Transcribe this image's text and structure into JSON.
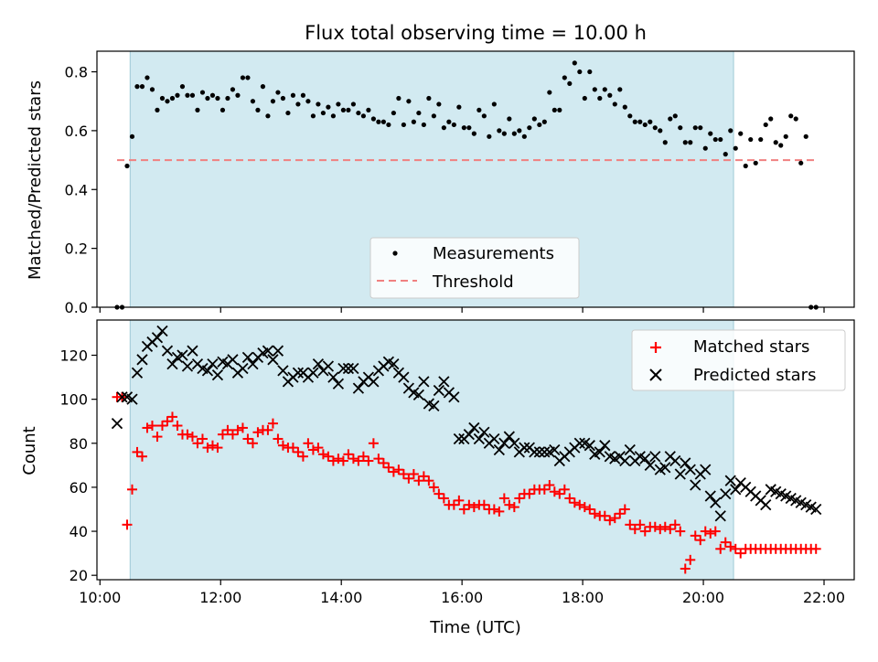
{
  "figure": {
    "title": "Flux total observing time = 10.00 h",
    "xlabel": "Time (UTC)",
    "x_ticks": [
      "10:00",
      "12:00",
      "14:00",
      "16:00",
      "18:00",
      "20:00",
      "22:00"
    ]
  },
  "chart_data": [
    {
      "type": "scatter",
      "title": "Flux total observing time = 10.00 h",
      "xlabel": "",
      "ylabel": "Matched/Predicted stars",
      "xlim": [
        "09:57",
        "22:30"
      ],
      "ylim": [
        0,
        0.87
      ],
      "y_ticks": [
        "0.0",
        "0.2",
        "0.4",
        "0.6",
        "0.8"
      ],
      "grid": false,
      "legend_position": "bottom-center",
      "shaded_span": [
        "10:30",
        "20:30"
      ],
      "shade_color": "#add8e6",
      "series": [
        {
          "name": "Measurements",
          "color": "#000000",
          "marker": "dot",
          "x": [
            "10:17",
            "10:22",
            "10:27",
            "10:32",
            "10:37",
            "10:42",
            "10:47",
            "10:52",
            "10:57",
            "11:02",
            "11:07",
            "11:12",
            "11:17",
            "11:22",
            "11:27",
            "11:32",
            "11:37",
            "11:42",
            "11:47",
            "11:52",
            "11:57",
            "12:02",
            "12:07",
            "12:12",
            "12:17",
            "12:22",
            "12:27",
            "12:32",
            "12:37",
            "12:42",
            "12:47",
            "12:52",
            "12:57",
            "13:02",
            "13:07",
            "13:12",
            "13:17",
            "13:22",
            "13:27",
            "13:32",
            "13:37",
            "13:42",
            "13:47",
            "13:52",
            "13:57",
            "14:02",
            "14:07",
            "14:12",
            "14:17",
            "14:22",
            "14:27",
            "14:32",
            "14:37",
            "14:42",
            "14:47",
            "14:52",
            "14:57",
            "15:02",
            "15:07",
            "15:12",
            "15:17",
            "15:22",
            "15:27",
            "15:32",
            "15:37",
            "15:42",
            "15:47",
            "15:52",
            "15:57",
            "16:02",
            "16:07",
            "16:12",
            "16:17",
            "16:22",
            "16:27",
            "16:32",
            "16:37",
            "16:42",
            "16:47",
            "16:52",
            "16:57",
            "17:02",
            "17:07",
            "17:12",
            "17:17",
            "17:22",
            "17:27",
            "17:32",
            "17:37",
            "17:42",
            "17:47",
            "17:52",
            "17:57",
            "18:02",
            "18:07",
            "18:12",
            "18:17",
            "18:22",
            "18:27",
            "18:32",
            "18:37",
            "18:42",
            "18:47",
            "18:52",
            "18:57",
            "19:02",
            "19:07",
            "19:12",
            "19:17",
            "19:22",
            "19:27",
            "19:32",
            "19:37",
            "19:42",
            "19:47",
            "19:52",
            "19:57",
            "20:02",
            "20:07",
            "20:12",
            "20:17",
            "20:22",
            "20:27",
            "20:32",
            "20:37",
            "20:42",
            "20:47",
            "20:52",
            "20:57",
            "21:02",
            "21:07",
            "21:12",
            "21:17",
            "21:22",
            "21:27",
            "21:32",
            "21:37",
            "21:42",
            "21:47",
            "21:52"
          ],
          "y": [
            0.0,
            0.0,
            0.48,
            0.58,
            0.75,
            0.75,
            0.78,
            0.74,
            0.67,
            0.71,
            0.7,
            0.71,
            0.72,
            0.75,
            0.72,
            0.72,
            0.67,
            0.73,
            0.71,
            0.72,
            0.71,
            0.67,
            0.71,
            0.74,
            0.72,
            0.78,
            0.78,
            0.7,
            0.67,
            0.75,
            0.65,
            0.7,
            0.73,
            0.71,
            0.66,
            0.72,
            0.69,
            0.72,
            0.7,
            0.65,
            0.69,
            0.66,
            0.68,
            0.65,
            0.69,
            0.67,
            0.67,
            0.69,
            0.66,
            0.65,
            0.67,
            0.64,
            0.63,
            0.63,
            0.62,
            0.66,
            0.71,
            0.62,
            0.7,
            0.63,
            0.66,
            0.62,
            0.71,
            0.65,
            0.69,
            0.61,
            0.63,
            0.62,
            0.68,
            0.61,
            0.61,
            0.59,
            0.67,
            0.65,
            0.58,
            0.69,
            0.6,
            0.59,
            0.64,
            0.59,
            0.6,
            0.58,
            0.61,
            0.64,
            0.62,
            0.63,
            0.73,
            0.67,
            0.67,
            0.78,
            0.76,
            0.83,
            0.8,
            0.71,
            0.8,
            0.74,
            0.71,
            0.74,
            0.72,
            0.69,
            0.74,
            0.68,
            0.65,
            0.63,
            0.63,
            0.62,
            0.63,
            0.61,
            0.6,
            0.56,
            0.64,
            0.65,
            0.61,
            0.56,
            0.56,
            0.61,
            0.61,
            0.54,
            0.59,
            0.57,
            0.57,
            0.52,
            0.6,
            0.54,
            0.59,
            0.48,
            0.57,
            0.49,
            0.57,
            0.62,
            0.64,
            0.56,
            0.55,
            0.58,
            0.65,
            0.64,
            0.49,
            0.58,
            0.0,
            0.0
          ]
        },
        {
          "name": "Threshold",
          "color": "#f08080",
          "style": "dashed",
          "x": [
            "10:17",
            "21:52"
          ],
          "y": [
            0.5,
            0.5
          ]
        }
      ]
    },
    {
      "type": "scatter",
      "title": "",
      "xlabel": "Time (UTC)",
      "ylabel": "Count",
      "xlim": [
        "09:57",
        "22:30"
      ],
      "ylim": [
        18,
        136
      ],
      "y_ticks": [
        "20",
        "40",
        "60",
        "80",
        "100",
        "120"
      ],
      "grid": false,
      "legend_position": "top-right",
      "shaded_span": [
        "10:30",
        "20:30"
      ],
      "shade_color": "#add8e6",
      "series": [
        {
          "name": "Matched stars",
          "color": "#ff0000",
          "marker": "plus",
          "x": [
            "10:17",
            "10:22",
            "10:27",
            "10:32",
            "10:37",
            "10:42",
            "10:47",
            "10:52",
            "10:57",
            "11:02",
            "11:07",
            "11:12",
            "11:17",
            "11:22",
            "11:27",
            "11:32",
            "11:37",
            "11:42",
            "11:47",
            "11:52",
            "11:57",
            "12:02",
            "12:07",
            "12:12",
            "12:17",
            "12:22",
            "12:27",
            "12:32",
            "12:37",
            "12:42",
            "12:47",
            "12:52",
            "12:57",
            "13:02",
            "13:07",
            "13:12",
            "13:17",
            "13:22",
            "13:27",
            "13:32",
            "13:37",
            "13:42",
            "13:47",
            "13:52",
            "13:57",
            "14:02",
            "14:07",
            "14:12",
            "14:17",
            "14:22",
            "14:27",
            "14:32",
            "14:37",
            "14:42",
            "14:47",
            "14:52",
            "14:57",
            "15:02",
            "15:07",
            "15:12",
            "15:17",
            "15:22",
            "15:27",
            "15:32",
            "15:37",
            "15:42",
            "15:47",
            "15:52",
            "15:57",
            "16:02",
            "16:07",
            "16:12",
            "16:17",
            "16:22",
            "16:27",
            "16:32",
            "16:37",
            "16:42",
            "16:47",
            "16:52",
            "16:57",
            "17:02",
            "17:07",
            "17:12",
            "17:17",
            "17:22",
            "17:27",
            "17:32",
            "17:37",
            "17:42",
            "17:47",
            "17:52",
            "17:57",
            "18:02",
            "18:07",
            "18:12",
            "18:17",
            "18:22",
            "18:27",
            "18:32",
            "18:37",
            "18:42",
            "18:47",
            "18:52",
            "18:57",
            "19:02",
            "19:07",
            "19:12",
            "19:17",
            "19:22",
            "19:27",
            "19:32",
            "19:37",
            "19:42",
            "19:47",
            "19:52",
            "19:57",
            "20:02",
            "20:07",
            "20:12",
            "20:17",
            "20:22",
            "20:27",
            "20:32",
            "20:37",
            "20:42",
            "20:47",
            "20:52",
            "20:57",
            "21:02",
            "21:07",
            "21:12",
            "21:17",
            "21:22",
            "21:27",
            "21:32",
            "21:37",
            "21:42",
            "21:47",
            "21:52"
          ],
          "y": [
            101,
            101,
            43,
            59,
            76,
            74,
            87,
            88,
            83,
            88,
            90,
            92,
            88,
            84,
            84,
            83,
            80,
            82,
            78,
            79,
            78,
            84,
            86,
            84,
            86,
            87,
            82,
            80,
            85,
            86,
            86,
            89,
            82,
            79,
            78,
            78,
            76,
            74,
            80,
            77,
            78,
            75,
            74,
            72,
            73,
            72,
            75,
            73,
            72,
            74,
            72,
            80,
            73,
            71,
            69,
            67,
            68,
            66,
            64,
            66,
            63,
            65,
            63,
            60,
            57,
            55,
            52,
            52,
            54,
            50,
            52,
            51,
            52,
            52,
            50,
            50,
            49,
            55,
            52,
            51,
            55,
            57,
            57,
            59,
            59,
            59,
            61,
            58,
            57,
            59,
            55,
            53,
            52,
            51,
            50,
            48,
            47,
            47,
            45,
            46,
            48,
            50,
            43,
            41,
            43,
            40,
            42,
            42,
            41,
            42,
            41,
            43,
            40,
            23,
            27,
            38,
            36,
            40,
            39,
            40,
            32,
            35,
            33,
            32,
            30,
            32,
            32,
            32,
            32,
            32,
            32,
            32,
            32,
            32,
            32,
            32,
            32,
            32,
            32,
            32
          ]
        },
        {
          "name": "Predicted stars",
          "color": "#000000",
          "marker": "x",
          "x": [
            "10:17",
            "10:22",
            "10:27",
            "10:32",
            "10:37",
            "10:42",
            "10:47",
            "10:52",
            "10:57",
            "11:02",
            "11:07",
            "11:12",
            "11:17",
            "11:22",
            "11:27",
            "11:32",
            "11:37",
            "11:42",
            "11:47",
            "11:52",
            "11:57",
            "12:02",
            "12:07",
            "12:12",
            "12:17",
            "12:22",
            "12:27",
            "12:32",
            "12:37",
            "12:42",
            "12:47",
            "12:52",
            "12:57",
            "13:02",
            "13:07",
            "13:12",
            "13:17",
            "13:22",
            "13:27",
            "13:32",
            "13:37",
            "13:42",
            "13:47",
            "13:52",
            "13:57",
            "14:02",
            "14:07",
            "14:12",
            "14:17",
            "14:22",
            "14:27",
            "14:32",
            "14:37",
            "14:42",
            "14:47",
            "14:52",
            "14:57",
            "15:02",
            "15:07",
            "15:12",
            "15:17",
            "15:22",
            "15:27",
            "15:32",
            "15:37",
            "15:42",
            "15:47",
            "15:52",
            "15:57",
            "16:02",
            "16:07",
            "16:12",
            "16:17",
            "16:22",
            "16:27",
            "16:32",
            "16:37",
            "16:42",
            "16:47",
            "16:52",
            "16:57",
            "17:02",
            "17:07",
            "17:12",
            "17:17",
            "17:22",
            "17:27",
            "17:32",
            "17:37",
            "17:42",
            "17:47",
            "17:52",
            "17:57",
            "18:02",
            "18:07",
            "18:12",
            "18:17",
            "18:22",
            "18:27",
            "18:32",
            "18:37",
            "18:42",
            "18:47",
            "18:52",
            "18:57",
            "19:02",
            "19:07",
            "19:12",
            "19:17",
            "19:22",
            "19:27",
            "19:32",
            "19:37",
            "19:42",
            "19:47",
            "19:52",
            "19:57",
            "20:02",
            "20:07",
            "20:12",
            "20:17",
            "20:22",
            "20:27",
            "20:32",
            "20:37",
            "20:42",
            "20:47",
            "20:52",
            "20:57",
            "21:02",
            "21:07",
            "21:12",
            "21:17",
            "21:22",
            "21:27",
            "21:32",
            "21:37",
            "21:42",
            "21:47",
            "21:52"
          ],
          "y": [
            89,
            101,
            101,
            100,
            112,
            118,
            124,
            126,
            128,
            131,
            122,
            116,
            119,
            120,
            115,
            122,
            116,
            114,
            113,
            116,
            111,
            117,
            116,
            118,
            112,
            114,
            119,
            116,
            119,
            121,
            122,
            118,
            122,
            113,
            108,
            110,
            112,
            112,
            110,
            112,
            116,
            113,
            115,
            110,
            107,
            114,
            114,
            114,
            105,
            108,
            110,
            108,
            113,
            115,
            117,
            116,
            112,
            110,
            105,
            103,
            102,
            108,
            98,
            97,
            104,
            108,
            103,
            101,
            82,
            82,
            84,
            87,
            82,
            85,
            80,
            82,
            77,
            80,
            83,
            80,
            76,
            78,
            78,
            76,
            76,
            76,
            76,
            77,
            72,
            74,
            76,
            78,
            80,
            80,
            79,
            75,
            76,
            79,
            74,
            73,
            74,
            72,
            77,
            72,
            74,
            73,
            70,
            74,
            68,
            69,
            74,
            72,
            66,
            71,
            68,
            61,
            66,
            68,
            56,
            53,
            47,
            57,
            63,
            59,
            62,
            60,
            58,
            56,
            54,
            52,
            59,
            58,
            57,
            56,
            55,
            54,
            53,
            52,
            51,
            50
          ]
        }
      ]
    }
  ]
}
